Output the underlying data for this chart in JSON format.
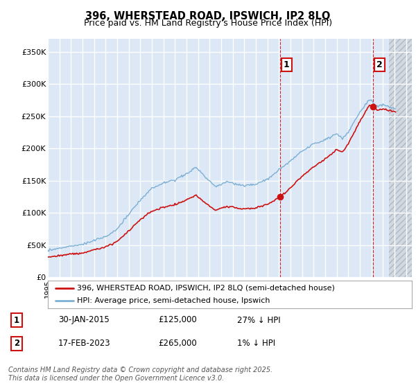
{
  "title_line1": "396, WHERSTEAD ROAD, IPSWICH, IP2 8LQ",
  "title_line2": "Price paid vs. HM Land Registry's House Price Index (HPI)",
  "ylim": [
    0,
    370000
  ],
  "yticks": [
    0,
    50000,
    100000,
    150000,
    200000,
    250000,
    300000,
    350000
  ],
  "ytick_labels": [
    "£0",
    "£50K",
    "£100K",
    "£150K",
    "£200K",
    "£250K",
    "£300K",
    "£350K"
  ],
  "xmin": 1995,
  "xmax": 2026.5,
  "background_color": "#ffffff",
  "plot_bg_color": "#dce8f5",
  "plot_bg_right_color": "#e8e8e8",
  "grid_color": "#ffffff",
  "hpi_color": "#7bafd4",
  "price_color": "#cc1111",
  "vline_color": "#cc1111",
  "sale1_x": 2015.08,
  "sale1_y": 125000,
  "sale2_x": 2023.13,
  "sale2_y": 265000,
  "legend_label_price": "396, WHERSTEAD ROAD, IPSWICH, IP2 8LQ (semi-detached house)",
  "legend_label_hpi": "HPI: Average price, semi-detached house, Ipswich",
  "table_row1": [
    "1",
    "30-JAN-2015",
    "£125,000",
    "27% ↓ HPI"
  ],
  "table_row2": [
    "2",
    "17-FEB-2023",
    "£265,000",
    "1% ↓ HPI"
  ],
  "footnote": "Contains HM Land Registry data © Crown copyright and database right 2025.\nThis data is licensed under the Open Government Licence v3.0.",
  "title_fontsize": 10.5,
  "subtitle_fontsize": 9,
  "tick_fontsize": 8,
  "legend_fontsize": 8,
  "table_fontsize": 8.5,
  "footnote_fontsize": 7
}
